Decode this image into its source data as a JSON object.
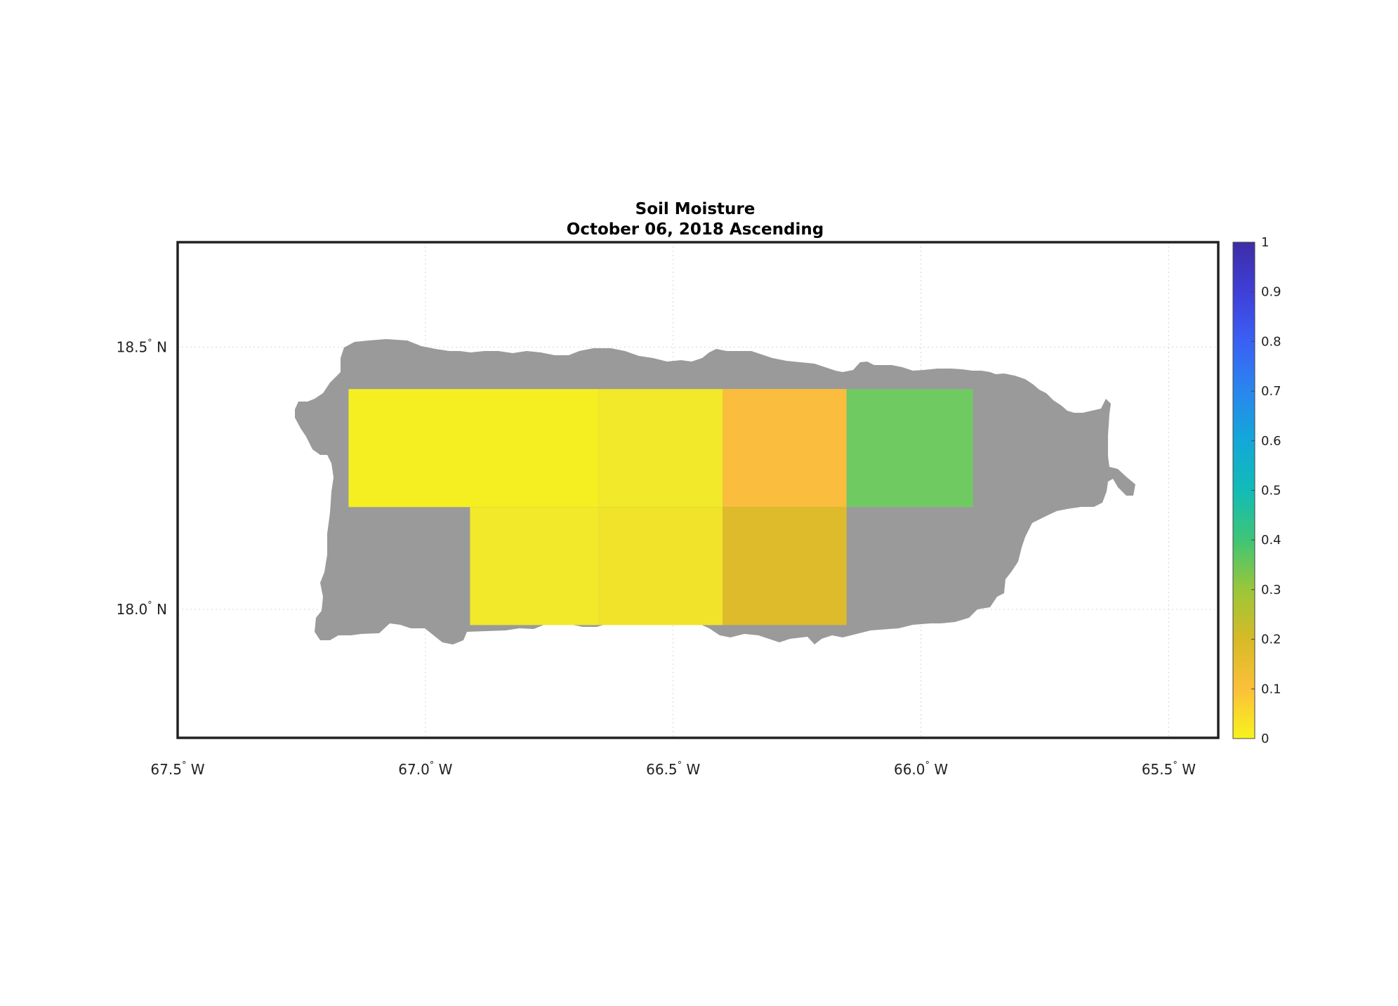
{
  "chart_data": {
    "type": "heatmap",
    "title": "Soil Moisture",
    "subtitle": "October 06, 2018 Ascending",
    "x_ticks": [
      {
        "value": -67.5,
        "label": "67.5",
        "hemi": "W"
      },
      {
        "value": -67.0,
        "label": "67.0",
        "hemi": "W"
      },
      {
        "value": -66.5,
        "label": "66.5",
        "hemi": "W"
      },
      {
        "value": -66.0,
        "label": "66.0",
        "hemi": "W"
      },
      {
        "value": -65.5,
        "label": "65.5",
        "hemi": "W"
      }
    ],
    "y_ticks": [
      {
        "value": 18.5,
        "label": "18.5",
        "hemi": "N"
      },
      {
        "value": 18.0,
        "label": "18.0",
        "hemi": "N"
      }
    ],
    "xlim": [
      -67.5,
      -65.4
    ],
    "ylim": [
      17.755,
      18.7
    ],
    "grid": true,
    "land_color": "#9a9a9a",
    "colorbar": {
      "range": [
        0,
        1
      ],
      "ticks": [
        "0",
        "0.1",
        "0.2",
        "0.3",
        "0.4",
        "0.5",
        "0.6",
        "0.7",
        "0.8",
        "0.9",
        "1"
      ],
      "colors": [
        "#f7f31c",
        "#fbc03a",
        "#d7ba26",
        "#9ac739",
        "#3ec576",
        "#12bcb6",
        "#12a8d8",
        "#2a86ee",
        "#3a60f4",
        "#3f3fd8",
        "#3d2da6"
      ]
    },
    "cells": [
      {
        "lon_min": -67.155,
        "lon_max": -66.65,
        "lat_min": 18.195,
        "lat_max": 18.42,
        "value": 0.02,
        "color": "#f5ef22"
      },
      {
        "lon_min": -66.65,
        "lon_max": -66.4,
        "lat_min": 18.195,
        "lat_max": 18.42,
        "value": 0.04,
        "color": "#f1e92a"
      },
      {
        "lon_min": -66.4,
        "lon_max": -66.15,
        "lat_min": 18.195,
        "lat_max": 18.42,
        "value": 0.15,
        "color": "#fbbd3d"
      },
      {
        "lon_min": -66.15,
        "lon_max": -65.895,
        "lat_min": 18.195,
        "lat_max": 18.42,
        "value": 0.38,
        "color": "#6fcb61"
      },
      {
        "lon_min": -66.91,
        "lon_max": -66.65,
        "lat_min": 17.97,
        "lat_max": 18.195,
        "value": 0.03,
        "color": "#f1e92a"
      },
      {
        "lon_min": -66.65,
        "lon_max": -66.4,
        "lat_min": 17.97,
        "lat_max": 18.195,
        "value": 0.05,
        "color": "#f1e32a"
      },
      {
        "lon_min": -66.4,
        "lon_max": -66.15,
        "lat_min": 17.97,
        "lat_max": 18.195,
        "value": 0.22,
        "color": "#ddbb2b"
      }
    ]
  }
}
